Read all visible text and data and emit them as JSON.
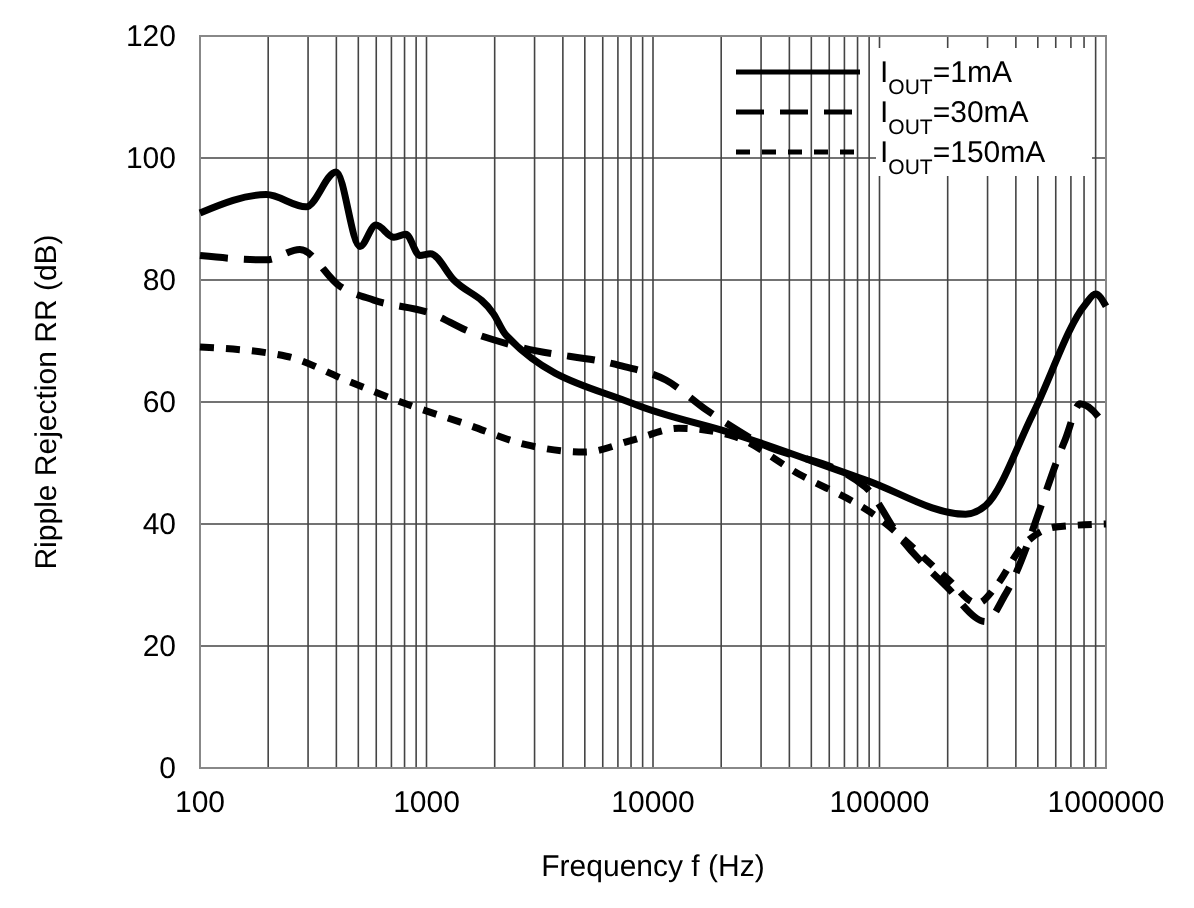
{
  "chart_data": {
    "type": "line",
    "xlabel": "Frequency f (Hz)",
    "ylabel": "Ripple Rejection RR (dB)",
    "log": "x",
    "xlim": [
      100,
      1000000
    ],
    "xticks": [
      100,
      1000,
      10000,
      100000,
      1000000
    ],
    "ylim": [
      0,
      120
    ],
    "yticks": [
      0,
      20,
      40,
      60,
      80,
      100,
      120
    ],
    "grid": true,
    "legend": "top right",
    "series": [
      {
        "name": "I$_{OUT}$=1mA",
        "color": "#000000",
        "line_style": "solid",
        "x": [
          100,
          196,
          294,
          399,
          508,
          598,
          718,
          810,
          935,
          1040,
          1320,
          1980,
          2240,
          8200,
          22600,
          87000,
          240000,
          294000,
          475000,
          810000,
          900000,
          1000000
        ],
        "values": [
          91,
          94,
          92,
          97.7,
          85.5,
          89,
          87,
          87.5,
          84,
          84.3,
          80,
          74.4,
          71,
          59.7,
          54.8,
          47.2,
          41.6,
          43,
          58,
          76,
          77.7,
          75.7
        ]
      },
      {
        "name": "I$_{OUT}$=30mA",
        "color": "#000000",
        "line_style": "dashed",
        "x": [
          100,
          196,
          276,
          414,
          585,
          1070,
          1490,
          2580,
          7100,
          11400,
          17200,
          27800,
          87000,
          122000,
          197000,
          294000,
          360000,
          660000,
          770000,
          1000000
        ],
        "values": [
          84,
          83.3,
          85,
          79,
          76.7,
          74.4,
          71.8,
          69,
          66,
          63.6,
          58.7,
          53.8,
          46,
          38,
          29.8,
          24,
          28.5,
          53.8,
          59.7,
          56
        ]
      },
      {
        "name": "I$_{OUT}$=150mA",
        "color": "#000000",
        "line_style": "dotted",
        "x": [
          100,
          240,
          440,
          810,
          1490,
          2750,
          5000,
          8200,
          13000,
          22600,
          44000,
          94000,
          200000,
          270000,
          330000,
          420000,
          600000,
          1000000
        ],
        "values": [
          69,
          67.5,
          63.6,
          59.7,
          56.4,
          53,
          51.8,
          53.8,
          55.7,
          54.4,
          48.2,
          41.6,
          31,
          27,
          30,
          36,
          39.5,
          40
        ]
      }
    ]
  }
}
